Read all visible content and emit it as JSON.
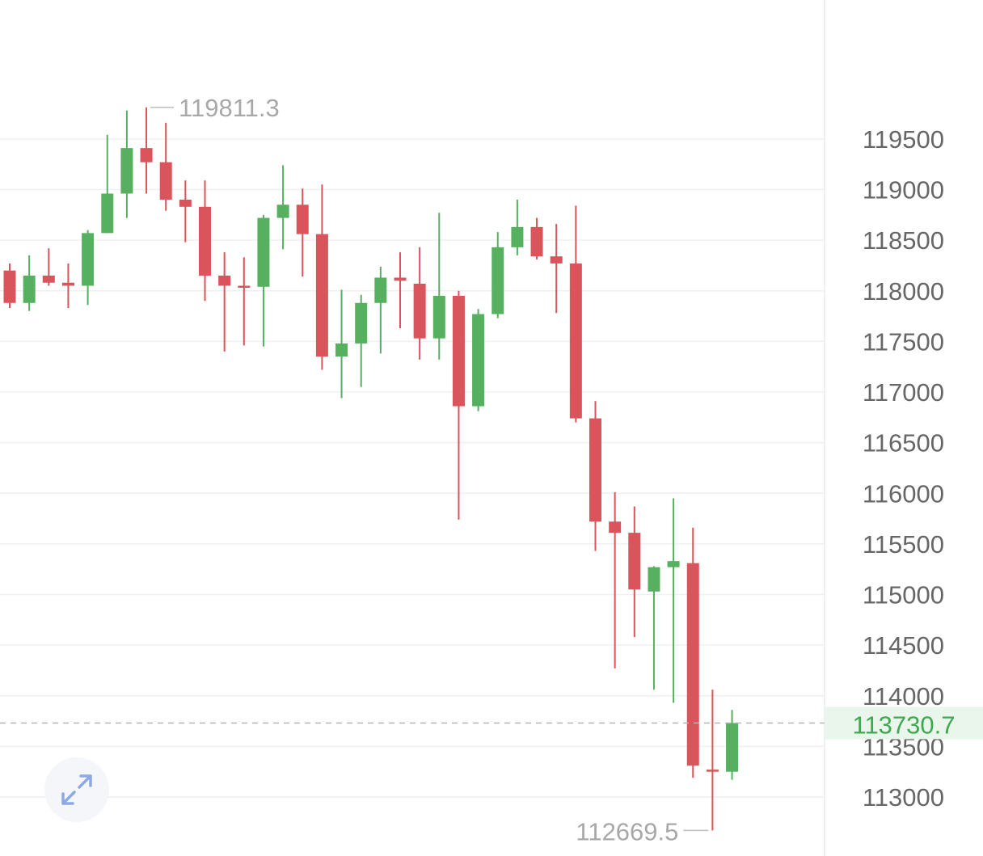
{
  "colors": {
    "up": "#56b05f",
    "down": "#d9545b",
    "grid": "#eef0f2",
    "axis_text": "#666666",
    "hilo_text": "#a8a8a8",
    "current_bg": "#eaf6ec",
    "current_text": "#3fa950",
    "dashed_line": "#b5b5b5"
  },
  "chart_data": {
    "type": "candlestick",
    "y_axis": {
      "ticks": [
        113000,
        113500,
        114000,
        114500,
        115000,
        115500,
        116000,
        116500,
        117000,
        117500,
        118000,
        118500,
        119000,
        119500
      ],
      "tick_labels": [
        "113000",
        "113500",
        "114000",
        "114500",
        "115000",
        "115500",
        "116000",
        "116500",
        "117000",
        "117500",
        "118000",
        "118500",
        "119000",
        "119500"
      ],
      "position": "right"
    },
    "grid": true,
    "candles": [
      {
        "open": 118200,
        "high": 118270,
        "low": 117830,
        "close": 117880
      },
      {
        "open": 117880,
        "high": 118350,
        "low": 117800,
        "close": 118150
      },
      {
        "open": 118150,
        "high": 118420,
        "low": 118050,
        "close": 118080
      },
      {
        "open": 118080,
        "high": 118270,
        "low": 117830,
        "close": 118050
      },
      {
        "open": 118050,
        "high": 118600,
        "low": 117860,
        "close": 118570
      },
      {
        "open": 118570,
        "high": 119540,
        "low": 118570,
        "close": 118960
      },
      {
        "open": 118960,
        "high": 119780,
        "low": 118720,
        "close": 119410
      },
      {
        "open": 119410,
        "high": 119811.3,
        "low": 118960,
        "close": 119270
      },
      {
        "open": 119270,
        "high": 119660,
        "low": 118790,
        "close": 118900
      },
      {
        "open": 118900,
        "high": 119090,
        "low": 118480,
        "close": 118830
      },
      {
        "open": 118830,
        "high": 119090,
        "low": 117900,
        "close": 118150
      },
      {
        "open": 118150,
        "high": 118380,
        "low": 117400,
        "close": 118050
      },
      {
        "open": 118050,
        "high": 118330,
        "low": 117460,
        "close": 118040
      },
      {
        "open": 118040,
        "high": 118750,
        "low": 117450,
        "close": 118720
      },
      {
        "open": 118720,
        "high": 119240,
        "low": 118410,
        "close": 118850
      },
      {
        "open": 118850,
        "high": 119010,
        "low": 118140,
        "close": 118560
      },
      {
        "open": 118560,
        "high": 119050,
        "low": 117220,
        "close": 117350
      },
      {
        "open": 117350,
        "high": 118010,
        "low": 116940,
        "close": 117480
      },
      {
        "open": 117480,
        "high": 117960,
        "low": 117050,
        "close": 117880
      },
      {
        "open": 117880,
        "high": 118240,
        "low": 117380,
        "close": 118130
      },
      {
        "open": 118130,
        "high": 118380,
        "low": 117630,
        "close": 118100
      },
      {
        "open": 118070,
        "high": 118430,
        "low": 117320,
        "close": 117530
      },
      {
        "open": 117530,
        "high": 118770,
        "low": 117320,
        "close": 117950
      },
      {
        "open": 117950,
        "high": 118000,
        "low": 115740,
        "close": 116860
      },
      {
        "open": 116860,
        "high": 117820,
        "low": 116810,
        "close": 117770
      },
      {
        "open": 117770,
        "high": 118580,
        "low": 117730,
        "close": 118430
      },
      {
        "open": 118430,
        "high": 118900,
        "low": 118350,
        "close": 118630
      },
      {
        "open": 118630,
        "high": 118720,
        "low": 118310,
        "close": 118340
      },
      {
        "open": 118340,
        "high": 118660,
        "low": 117780,
        "close": 118270
      },
      {
        "open": 118270,
        "high": 118840,
        "low": 116700,
        "close": 116740
      },
      {
        "open": 116740,
        "high": 116910,
        "low": 115430,
        "close": 115720
      },
      {
        "open": 115720,
        "high": 116010,
        "low": 114270,
        "close": 115610
      },
      {
        "open": 115610,
        "high": 115870,
        "low": 114580,
        "close": 115050
      },
      {
        "open": 115030,
        "high": 115280,
        "low": 114060,
        "close": 115270
      },
      {
        "open": 115270,
        "high": 115950,
        "low": 113930,
        "close": 115330
      },
      {
        "open": 115310,
        "high": 115660,
        "low": 113190,
        "close": 113310
      },
      {
        "open": 113270,
        "high": 114060,
        "low": 112669.5,
        "close": 113250
      },
      {
        "open": 113250,
        "high": 113860,
        "low": 113170,
        "close": 113730.7
      }
    ],
    "annotations": {
      "high_label": "119811.3",
      "low_label": "112669.5"
    },
    "current_price": {
      "value": 113730.7,
      "label": "113730.7"
    }
  }
}
